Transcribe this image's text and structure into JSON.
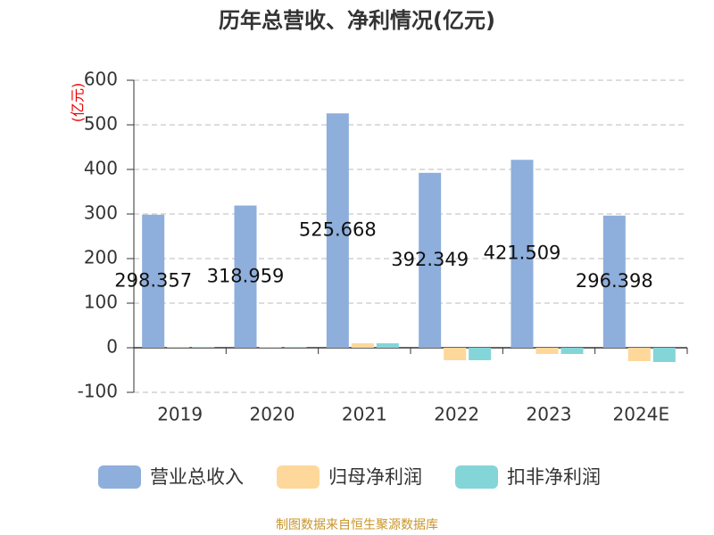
{
  "chart_data": {
    "type": "bar",
    "title": "历年总营收、净利情况(亿元)",
    "y_unit": "(亿元)",
    "source": "制图数据来自恒生聚源数据库",
    "categories": [
      "2019",
      "2020",
      "2021",
      "2022",
      "2023",
      "2024E"
    ],
    "series": [
      {
        "name": "营业总收入",
        "color": "#8eaedc",
        "values": [
          298.357,
          318.959,
          525.668,
          392.349,
          421.509,
          296.398
        ],
        "show_labels": true
      },
      {
        "name": "归母净利润",
        "color": "#fdd89a",
        "values": [
          1.5,
          1.8,
          10,
          -28,
          -14,
          -30
        ]
      },
      {
        "name": "扣非净利润",
        "color": "#84d5d8",
        "values": [
          2,
          2,
          10,
          -28,
          -14,
          -32
        ]
      }
    ],
    "ylim": [
      -100,
      600
    ],
    "yticks": [
      -100,
      0,
      100,
      200,
      300,
      400,
      500,
      600
    ],
    "grid": true
  }
}
